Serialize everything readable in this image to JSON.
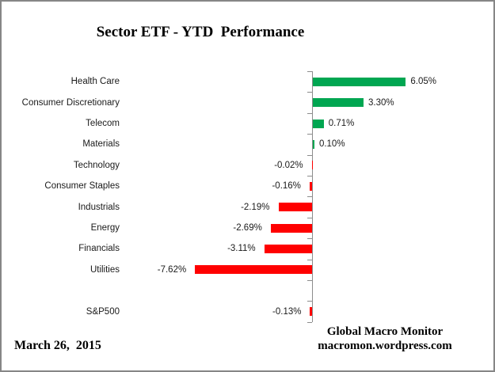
{
  "title": "Sector ETF - YTD  Performance",
  "date_label": "March 26,  2015",
  "credit": {
    "line1": "Global Macro Monitor",
    "line2": "macromon.wordpress.com"
  },
  "chart_data": {
    "type": "bar",
    "orientation": "horizontal",
    "title": "Sector ETF - YTD  Performance",
    "categories": [
      "Health Care",
      "Consumer Discretionary",
      "Telecom",
      "Materials",
      "Technology",
      "Consumer Staples",
      "Industrials",
      "Energy",
      "Financials",
      "Utilities",
      "S&P500"
    ],
    "values": [
      6.05,
      3.3,
      0.71,
      0.1,
      -0.02,
      -0.16,
      -2.19,
      -2.69,
      -3.11,
      -7.62,
      -0.13
    ],
    "value_labels": [
      "6.05%",
      "3.30%",
      "0.71%",
      "0.10%",
      "-0.02%",
      "-0.16%",
      "-2.19%",
      "-2.69%",
      "-3.11%",
      "-7.62%",
      "-0.13%"
    ],
    "unit": "%",
    "gap_after_index": 9,
    "xlim": [
      -8,
      7
    ],
    "grid": false,
    "legend": false,
    "data_labels": true,
    "colors": {
      "positive": "#00A651",
      "negative": "#FF0000",
      "axis": "#8C8C8C",
      "text": "#1A1A1A"
    }
  }
}
